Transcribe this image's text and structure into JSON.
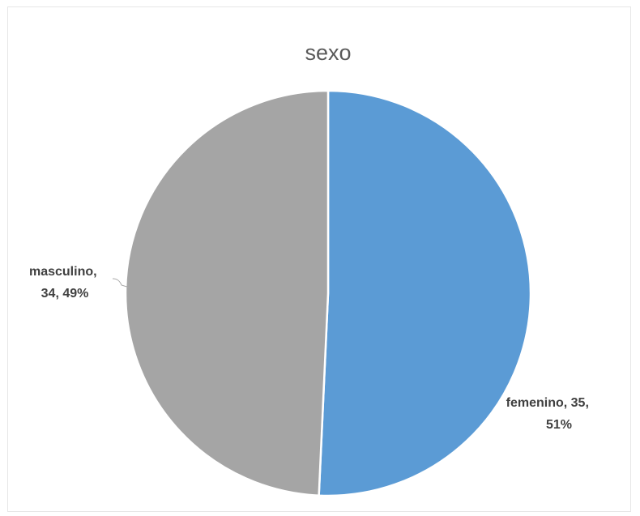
{
  "chart_data": {
    "type": "pie",
    "title": "sexo",
    "slices": [
      {
        "label": "femenino",
        "value": 35,
        "percent": 51,
        "color": "#5b9bd5",
        "label_lines": [
          "femenino, 35,",
          "51%"
        ]
      },
      {
        "label": "masculino",
        "value": 34,
        "percent": 49,
        "color": "#a5a5a5",
        "label_lines": [
          "masculino,",
          "34, 49%"
        ]
      }
    ],
    "start_angle": "12 o'clock",
    "direction": "clockwise",
    "legend": "none",
    "slice_border_color": "#ffffff"
  }
}
